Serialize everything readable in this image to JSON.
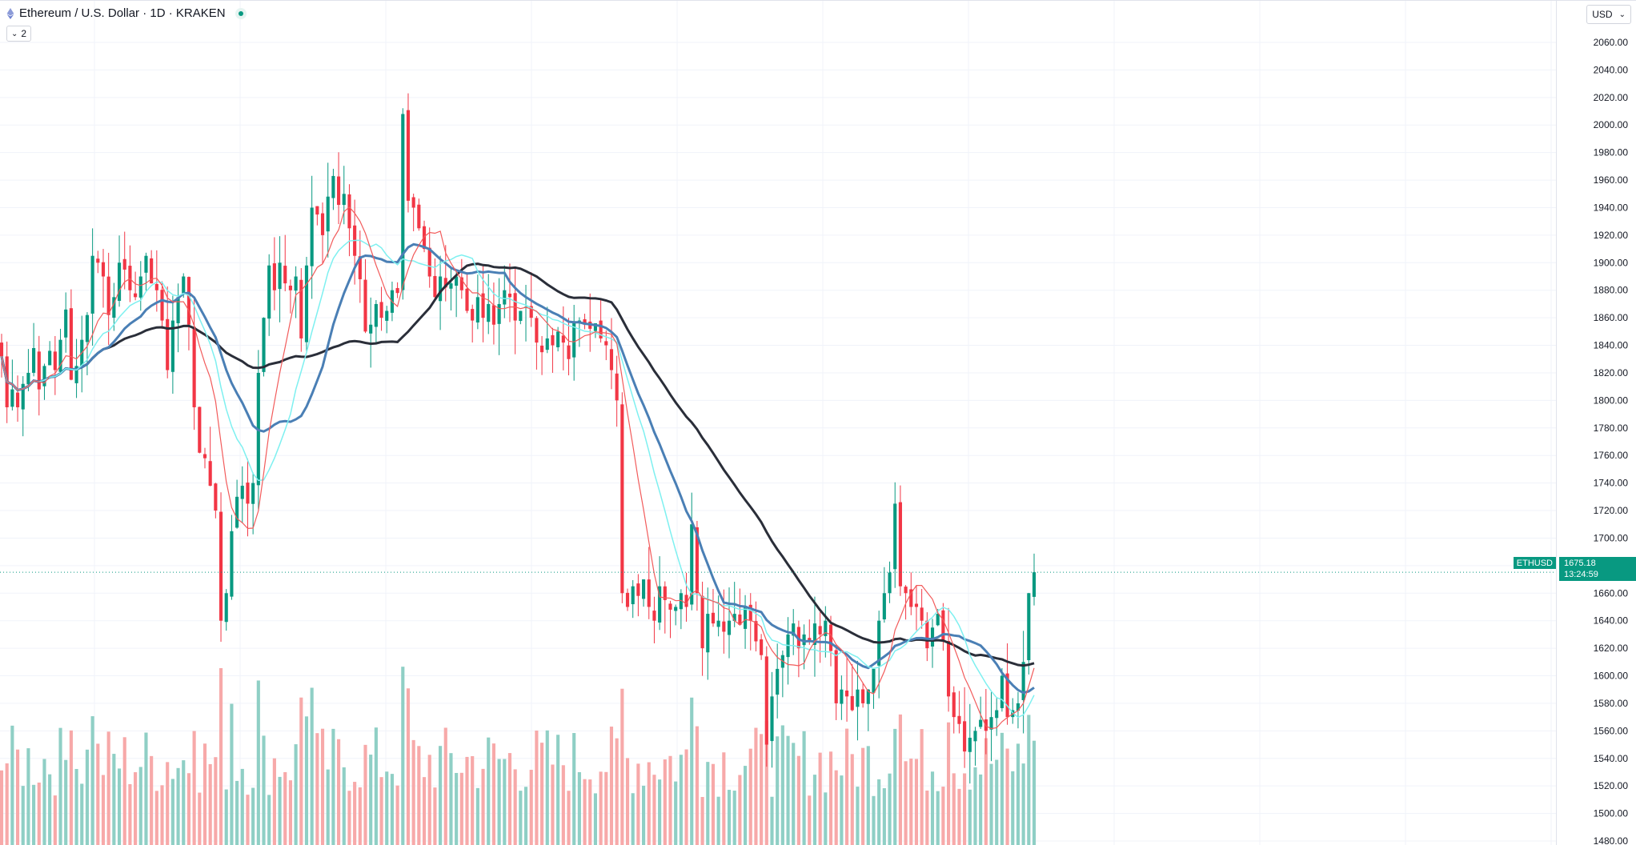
{
  "header": {
    "title": "Ethereum / U.S. Dollar · 1D · KRAKEN",
    "indicator_count": "2",
    "currency": "USD"
  },
  "price_axis": {
    "last_symbol": "ETHUSD",
    "last_price": "1675.18",
    "countdown": "13:24:59"
  },
  "colors": {
    "up": "#089981",
    "down": "#f23645",
    "up_vol": "#8fcfc5",
    "down_vol": "#f7a9a9",
    "ma_black": "#2a2e39",
    "ma_blue": "#4a7fb5",
    "ma_cyan": "#7ef0f0",
    "ma_red": "#f25b5b"
  },
  "chart_data": {
    "type": "candlestick",
    "title": "Ethereum / U.S. Dollar · 1D · KRAKEN",
    "ylim": [
      1470,
      2070
    ],
    "yticks": [
      "1480.00",
      "1500.00",
      "1520.00",
      "1540.00",
      "1560.00",
      "1580.00",
      "1600.00",
      "1620.00",
      "1640.00",
      "1660.00",
      "1680.00",
      "1700.00",
      "1720.00",
      "1740.00",
      "1760.00",
      "1780.00",
      "1800.00",
      "1820.00",
      "1840.00",
      "1860.00",
      "1880.00",
      "1900.00",
      "1920.00",
      "1940.00",
      "1960.00",
      "1980.00",
      "2000.00",
      "2020.00",
      "2040.00",
      "2060.00"
    ],
    "last_price": 1675.18,
    "close": [
      1832,
      1795,
      1808,
      1795,
      1812,
      1820,
      1838,
      1808,
      1825,
      1836,
      1822,
      1844,
      1866,
      1815,
      1825,
      1844,
      1862,
      1905,
      1900,
      1890,
      1862,
      1875,
      1900,
      1895,
      1880,
      1875,
      1890,
      1905,
      1885,
      1880,
      1858,
      1822,
      1858,
      1875,
      1890,
      1855,
      1795,
      1762,
      1758,
      1738,
      1720,
      1640,
      1660,
      1705,
      1730,
      1738,
      1725,
      1740,
      1820,
      1860,
      1898,
      1880,
      1900,
      1885,
      1880,
      1890,
      1845,
      1898,
      1940,
      1935,
      1920,
      1948,
      1963,
      1942,
      1950,
      1925,
      1905,
      1888,
      1850,
      1855,
      1870,
      1860,
      1865,
      1880,
      1878,
      2008,
      1945,
      1940,
      1925,
      1910,
      1890,
      1875,
      1890,
      1882,
      1885,
      1890,
      1880,
      1865,
      1858,
      1875,
      1860,
      1870,
      1855,
      1870,
      1880,
      1875,
      1858,
      1865,
      1868,
      1860,
      1842,
      1835,
      1845,
      1840,
      1850,
      1842,
      1830,
      1856,
      1858,
      1855,
      1852,
      1856,
      1845,
      1840,
      1822,
      1800,
      1660,
      1650,
      1665,
      1658,
      1670,
      1650,
      1640,
      1665,
      1655,
      1648,
      1650,
      1660,
      1650,
      1710,
      1660,
      1620,
      1645,
      1638,
      1640,
      1632,
      1640,
      1645,
      1637,
      1650,
      1640,
      1625,
      1615,
      1550,
      1585,
      1605,
      1615,
      1630,
      1638,
      1620,
      1630,
      1625,
      1638,
      1630,
      1640,
      1618,
      1580,
      1590,
      1585,
      1575,
      1590,
      1580,
      1590,
      1605,
      1640,
      1660,
      1675,
      1725,
      1665,
      1660,
      1650,
      1650,
      1640,
      1620,
      1635,
      1645,
      1625,
      1585,
      1570,
      1565,
      1545,
      1555,
      1560,
      1568,
      1560,
      1570,
      1575,
      1600,
      1570,
      1575,
      1580,
      1610,
      1660,
      1675.18
    ],
    "ma_periods_note": "moving averages drawn as overlay lines",
    "volume": "bars proportional to daily traded volume"
  }
}
